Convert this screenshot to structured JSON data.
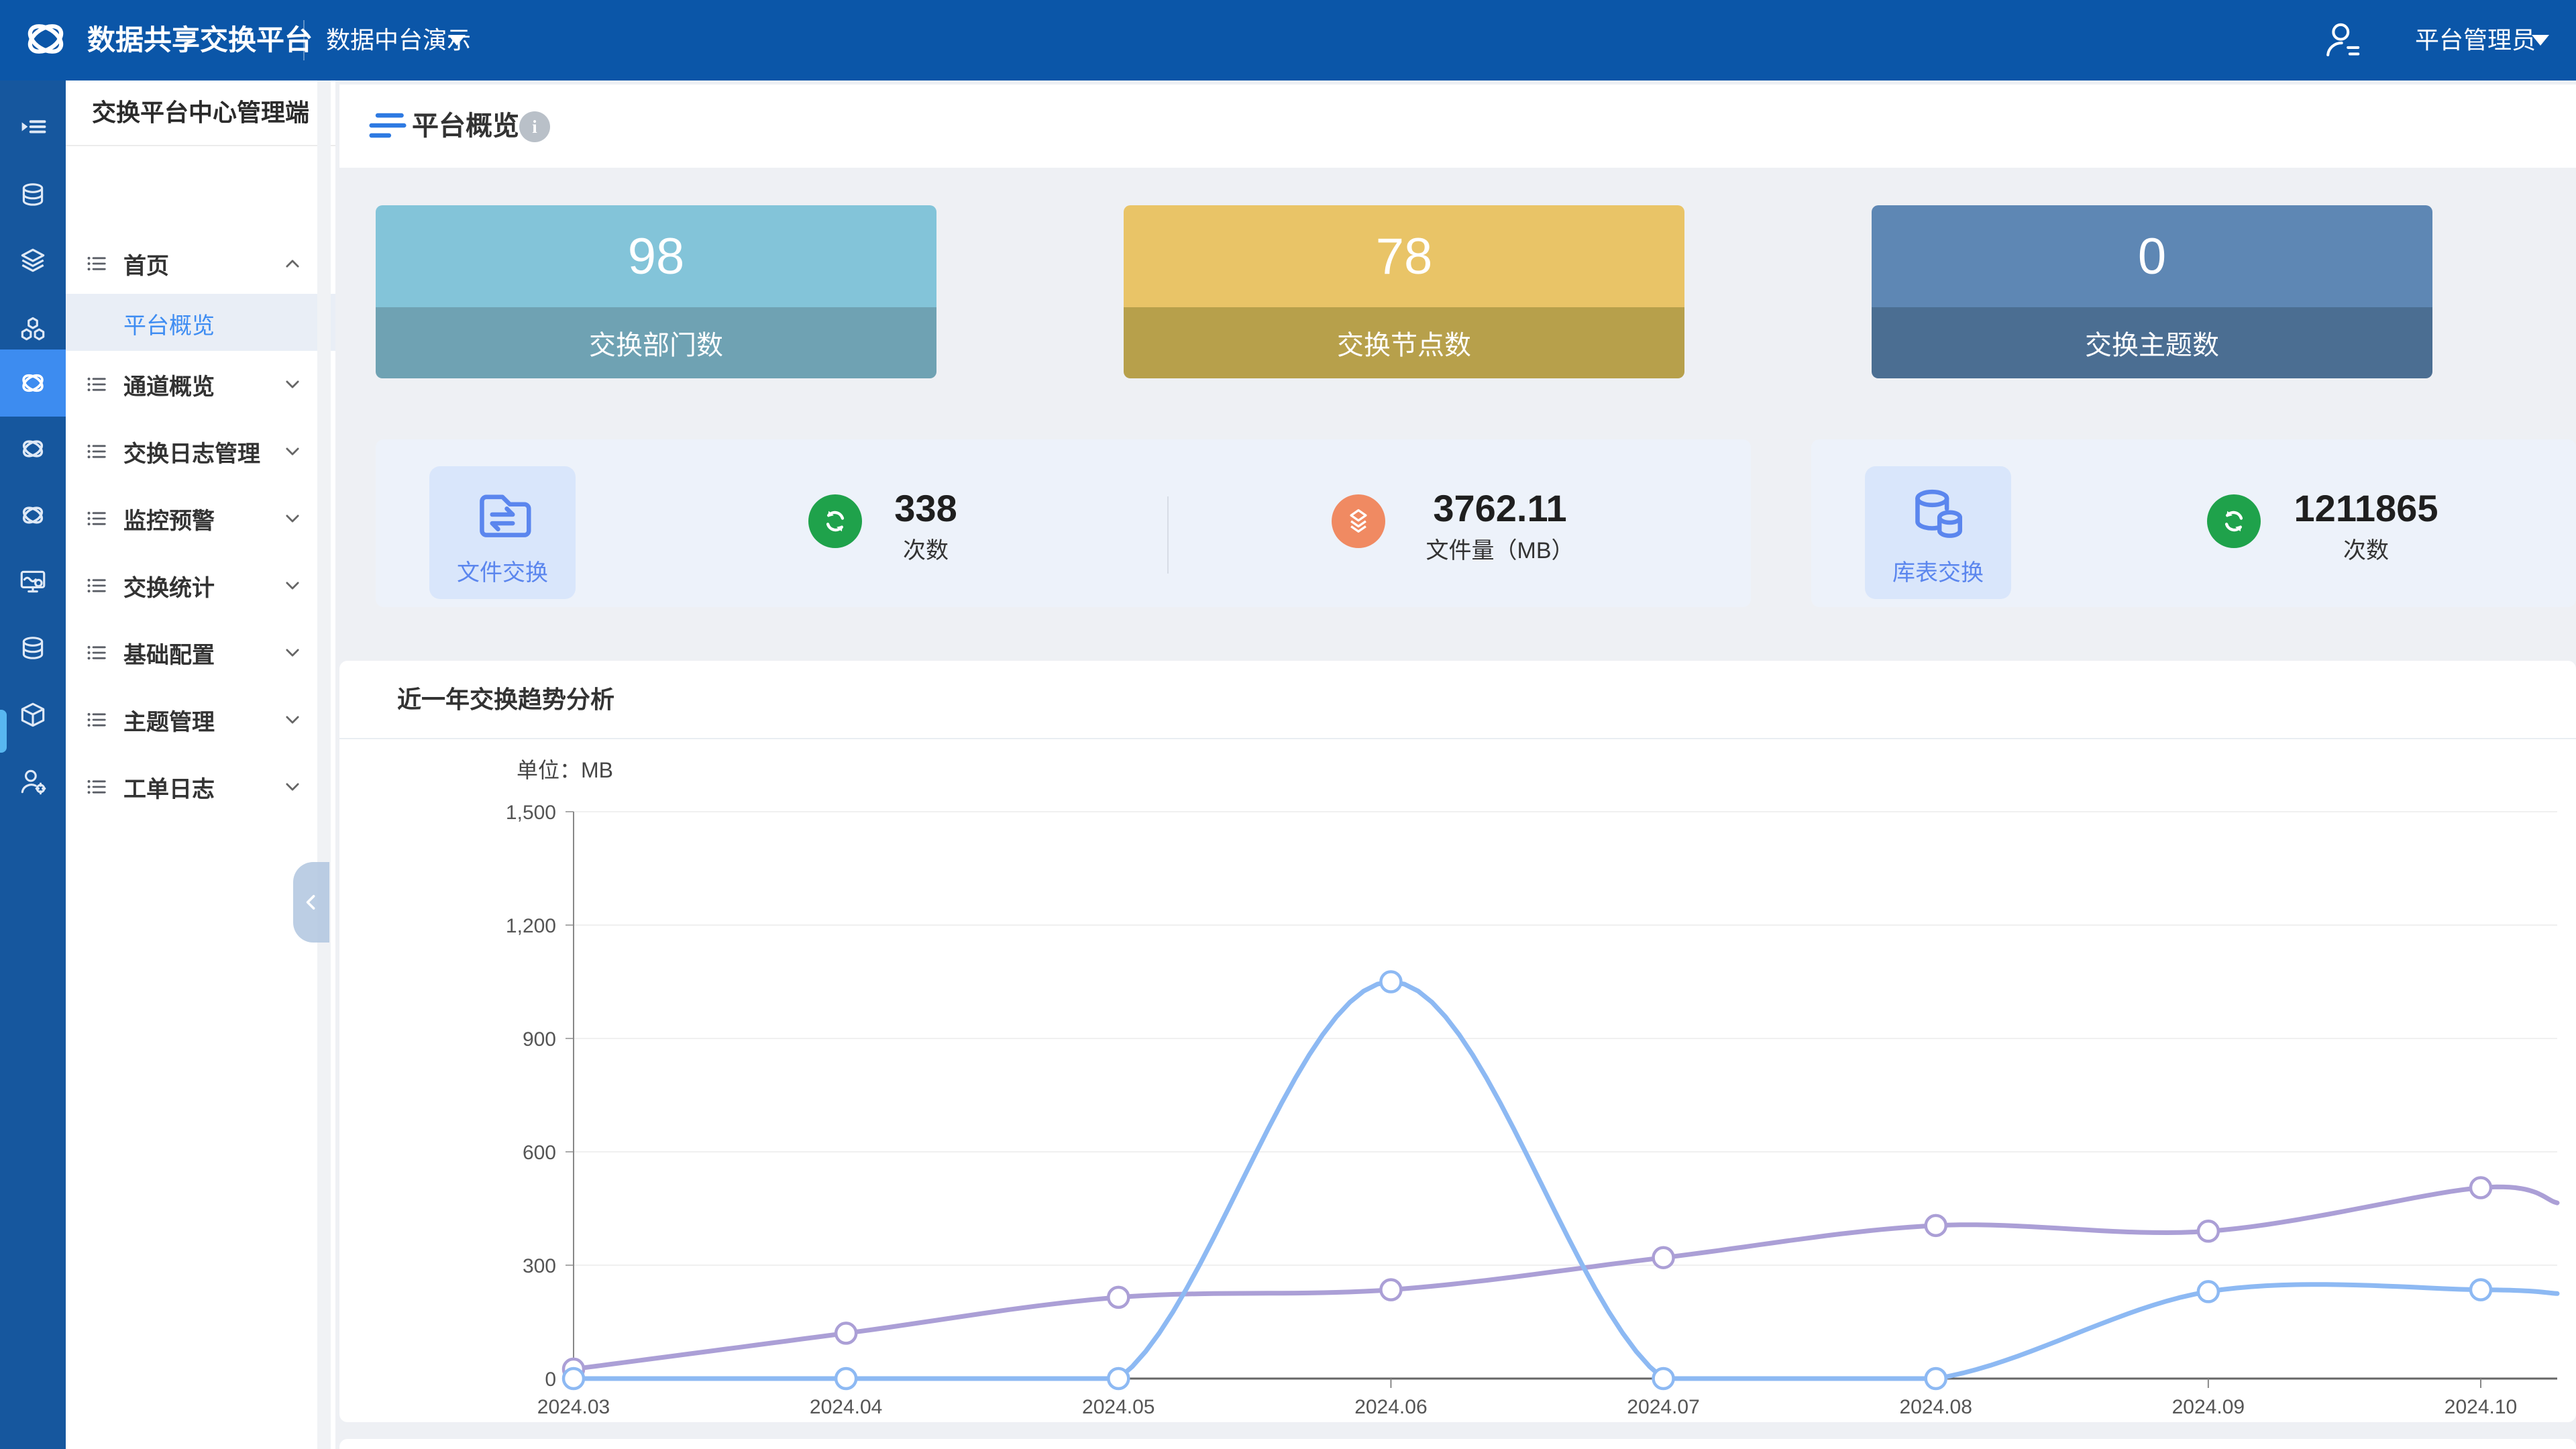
{
  "header": {
    "brand": "数据共享交换平台",
    "env_selector": "数据中台演示",
    "user_name": "平台管理员"
  },
  "rail": {
    "active_index": 4,
    "icons": [
      "menu-toggle",
      "database",
      "layers",
      "nodes",
      "exchange",
      "exchange",
      "exchange",
      "monitor-config",
      "database",
      "api",
      "user-settings"
    ]
  },
  "sidebar": {
    "title": "交换平台中心管理端",
    "menu": [
      {
        "label": "首页",
        "expanded": true,
        "children": [
          {
            "label": "平台概览",
            "active": true
          }
        ]
      },
      {
        "label": "通道概览"
      },
      {
        "label": "交换日志管理"
      },
      {
        "label": "监控预警"
      },
      {
        "label": "交换统计"
      },
      {
        "label": "基础配置"
      },
      {
        "label": "主题管理"
      },
      {
        "label": "工单日志"
      }
    ]
  },
  "page": {
    "title": "平台概览",
    "info_icon": "i"
  },
  "stats": [
    {
      "value": "98",
      "label": "交换部门数",
      "color_top": "#83c4d9",
      "color_bottom": "#6fa2b3"
    },
    {
      "value": "78",
      "label": "交换节点数",
      "color_top": "#e9c467",
      "color_bottom": "#b7a04b"
    },
    {
      "value": "0",
      "label": "交换主题数",
      "color_top": "#5e87b4",
      "color_bottom": "#4b6e92"
    }
  ],
  "panels": [
    {
      "tile_label": "文件交换",
      "tile_icon": "folder-exchange",
      "metrics": [
        {
          "value": "338",
          "label": "次数",
          "icon": "sync",
          "icon_color": "#1fa24b"
        },
        {
          "value": "3762.11",
          "label": "文件量（MB）",
          "icon": "stacked-layers",
          "icon_color": "#f08a62"
        }
      ]
    },
    {
      "tile_label": "库表交换",
      "tile_icon": "database-exchange",
      "metrics": [
        {
          "value": "1211865",
          "label": "次数",
          "icon": "sync",
          "icon_color": "#1fa24b"
        }
      ]
    }
  ],
  "chart_data": {
    "type": "line",
    "title": "近一年交换趋势分析",
    "unit_label": "单位：MB",
    "x": [
      "2024.03",
      "2024.04",
      "2024.05",
      "2024.06",
      "2024.07",
      "2024.08",
      "2024.09",
      "2024.10"
    ],
    "ylim": [
      0,
      1500
    ],
    "ytick_labels": [
      "0",
      "300",
      "600",
      "900",
      "1,200",
      "1,500"
    ],
    "grid": true,
    "legend_position": "none",
    "smooth": true,
    "series": [
      {
        "color": "#ab9fd6",
        "marker": "circle",
        "values": [
          25,
          120,
          215,
          235,
          320,
          405,
          390,
          505
        ],
        "edge_value": 465
      },
      {
        "color": "#8db9f3",
        "marker": "circle",
        "values": [
          0,
          0,
          0,
          1050,
          0,
          0,
          230,
          235
        ],
        "edge_value": 225
      }
    ]
  }
}
